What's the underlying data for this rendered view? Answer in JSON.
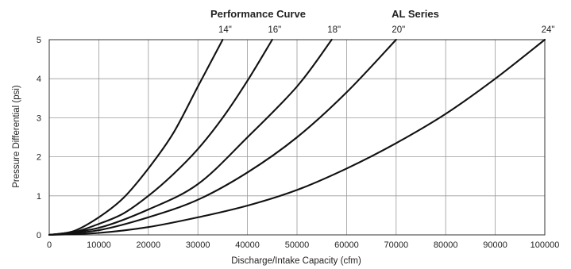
{
  "chart_data": {
    "type": "line",
    "title": "Performance Curve",
    "subtitle": "AL Series",
    "xlabel": "Discharge/Intake Capacity (cfm)",
    "ylabel": "Pressure Differential (psi)",
    "xlim": [
      0,
      100000
    ],
    "ylim": [
      0,
      5
    ],
    "x_ticks": [
      "0",
      "10000",
      "20000",
      "30000",
      "40000",
      "50000",
      "60000",
      "70000",
      "80000",
      "90000",
      "100000"
    ],
    "y_ticks": [
      "0",
      "1",
      "2",
      "3",
      "4",
      "5"
    ],
    "grid": true,
    "legend": "curve labels along top edge",
    "series": [
      {
        "name": "14\"",
        "x": [
          0,
          5000,
          10000,
          15000,
          20000,
          25000,
          30000,
          35000
        ],
        "y": [
          0,
          0.1,
          0.45,
          0.95,
          1.7,
          2.6,
          3.8,
          5.0
        ]
      },
      {
        "name": "16\"",
        "x": [
          0,
          5000,
          10000,
          15000,
          20000,
          25000,
          30000,
          35000,
          40000,
          45000
        ],
        "y": [
          0,
          0.07,
          0.28,
          0.55,
          1.0,
          1.55,
          2.2,
          3.0,
          3.95,
          5.0
        ]
      },
      {
        "name": "18\"",
        "x": [
          0,
          10000,
          20000,
          30000,
          40000,
          50000,
          57000
        ],
        "y": [
          0,
          0.18,
          0.65,
          1.3,
          2.5,
          3.8,
          5.0
        ]
      },
      {
        "name": "20\"",
        "x": [
          0,
          10000,
          20000,
          30000,
          40000,
          50000,
          60000,
          70000
        ],
        "y": [
          0,
          0.12,
          0.45,
          0.9,
          1.6,
          2.5,
          3.65,
          5.0
        ]
      },
      {
        "name": "24\"",
        "x": [
          0,
          10000,
          20000,
          30000,
          40000,
          50000,
          60000,
          70000,
          80000,
          90000,
          100000
        ],
        "y": [
          0,
          0.05,
          0.2,
          0.45,
          0.75,
          1.15,
          1.7,
          2.35,
          3.1,
          4.0,
          5.0
        ]
      }
    ]
  }
}
